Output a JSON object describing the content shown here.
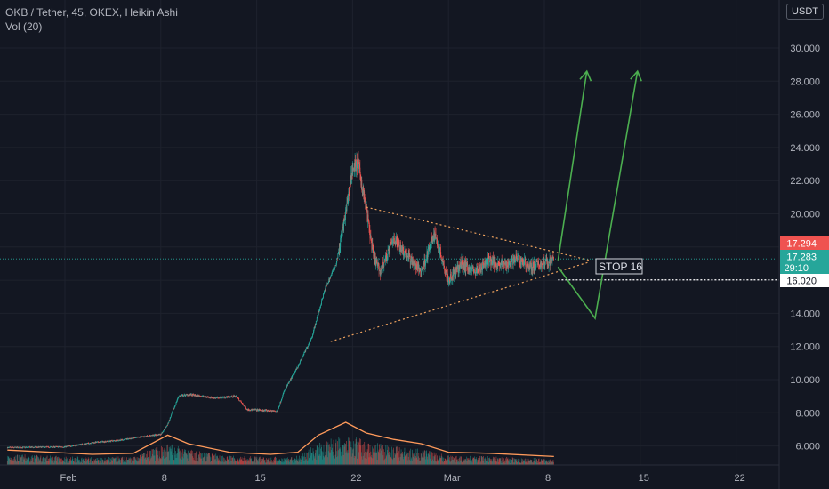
{
  "legend": {
    "title": "OKB / Tether, 45, OKEX, Heikin Ashi",
    "volume": "Vol (20)"
  },
  "currency": "USDT",
  "colors": {
    "background": "#131722",
    "up": "#26a69a",
    "down": "#ef5350",
    "volume_ma": "#ff9a5b",
    "trendline": "#f0a35e",
    "projection": "#4caf50",
    "grid": "#1e222d"
  },
  "chart_data": {
    "type": "candlestick",
    "chart_style": "Heikin Ashi",
    "ylim": [
      5.0,
      31.0
    ],
    "y_ticks": [
      "6.000",
      "8.000",
      "10.000",
      "12.000",
      "14.000",
      "16.000",
      "18.000",
      "20.000",
      "22.000",
      "24.000",
      "26.000",
      "28.000",
      "30.000"
    ],
    "x_ticks": [
      {
        "label": "Feb",
        "day": 0
      },
      {
        "label": "8",
        "day": 7
      },
      {
        "label": "15",
        "day": 14
      },
      {
        "label": "22",
        "day": 21
      },
      {
        "label": "Mar",
        "day": 28
      },
      {
        "label": "8",
        "day": 35
      },
      {
        "label": "15",
        "day": 42
      },
      {
        "label": "22",
        "day": 49
      }
    ],
    "x_range_days": [
      -4.2,
      52.5
    ],
    "price_path": [
      [
        -4.2,
        5.9
      ],
      [
        0,
        5.95
      ],
      [
        2,
        6.2
      ],
      [
        4,
        6.35
      ],
      [
        6,
        6.6
      ],
      [
        7,
        6.7
      ],
      [
        7.5,
        7.3
      ],
      [
        8.3,
        9.0
      ],
      [
        9,
        9.1
      ],
      [
        11,
        8.9
      ],
      [
        12.5,
        9.0
      ],
      [
        13.3,
        8.2
      ],
      [
        15.5,
        8.1
      ],
      [
        16,
        9.3
      ],
      [
        17,
        10.8
      ],
      [
        18,
        12.5
      ],
      [
        19,
        15.5
      ],
      [
        19.8,
        17.0
      ],
      [
        20.5,
        20.0
      ],
      [
        21,
        22.8
      ],
      [
        21.4,
        23.0
      ],
      [
        22,
        20.3
      ],
      [
        22.5,
        17.5
      ],
      [
        23,
        16.5
      ],
      [
        24,
        18.5
      ],
      [
        25,
        17.5
      ],
      [
        26,
        16.5
      ],
      [
        27,
        18.8
      ],
      [
        28,
        16.0
      ],
      [
        29,
        17.0
      ],
      [
        30,
        16.5
      ],
      [
        31,
        17.2
      ],
      [
        32,
        16.9
      ],
      [
        33,
        17.3
      ],
      [
        34,
        16.8
      ],
      [
        35,
        17.0
      ],
      [
        35.7,
        17.28
      ]
    ],
    "volume_ma_path": [
      [
        -4.2,
        0.7
      ],
      [
        2,
        0.5
      ],
      [
        5,
        0.55
      ],
      [
        7.5,
        1.4
      ],
      [
        9,
        1.0
      ],
      [
        12,
        0.6
      ],
      [
        15,
        0.5
      ],
      [
        17,
        0.6
      ],
      [
        18.5,
        1.4
      ],
      [
        20.5,
        2.0
      ],
      [
        22,
        1.5
      ],
      [
        24,
        1.2
      ],
      [
        26,
        1.0
      ],
      [
        28,
        0.6
      ],
      [
        31,
        0.55
      ],
      [
        35.7,
        0.4
      ]
    ],
    "last_price": "17.294",
    "current_price": "17.283",
    "countdown": "29:10",
    "stop_level": "16.020",
    "annotations": {
      "stop_label": "STOP 16"
    },
    "triangle": {
      "upper": [
        [
          22,
          20.4
        ],
        [
          38.3,
          17.2
        ]
      ],
      "lower": [
        [
          19.4,
          12.3
        ],
        [
          38.3,
          17.1
        ]
      ]
    },
    "projection": {
      "path_a": [
        [
          36,
          17.2
        ],
        [
          38.1,
          28.6
        ]
      ],
      "path_b": [
        [
          36,
          16.8
        ],
        [
          38.7,
          13.7
        ],
        [
          41.8,
          28.6
        ]
      ]
    }
  }
}
